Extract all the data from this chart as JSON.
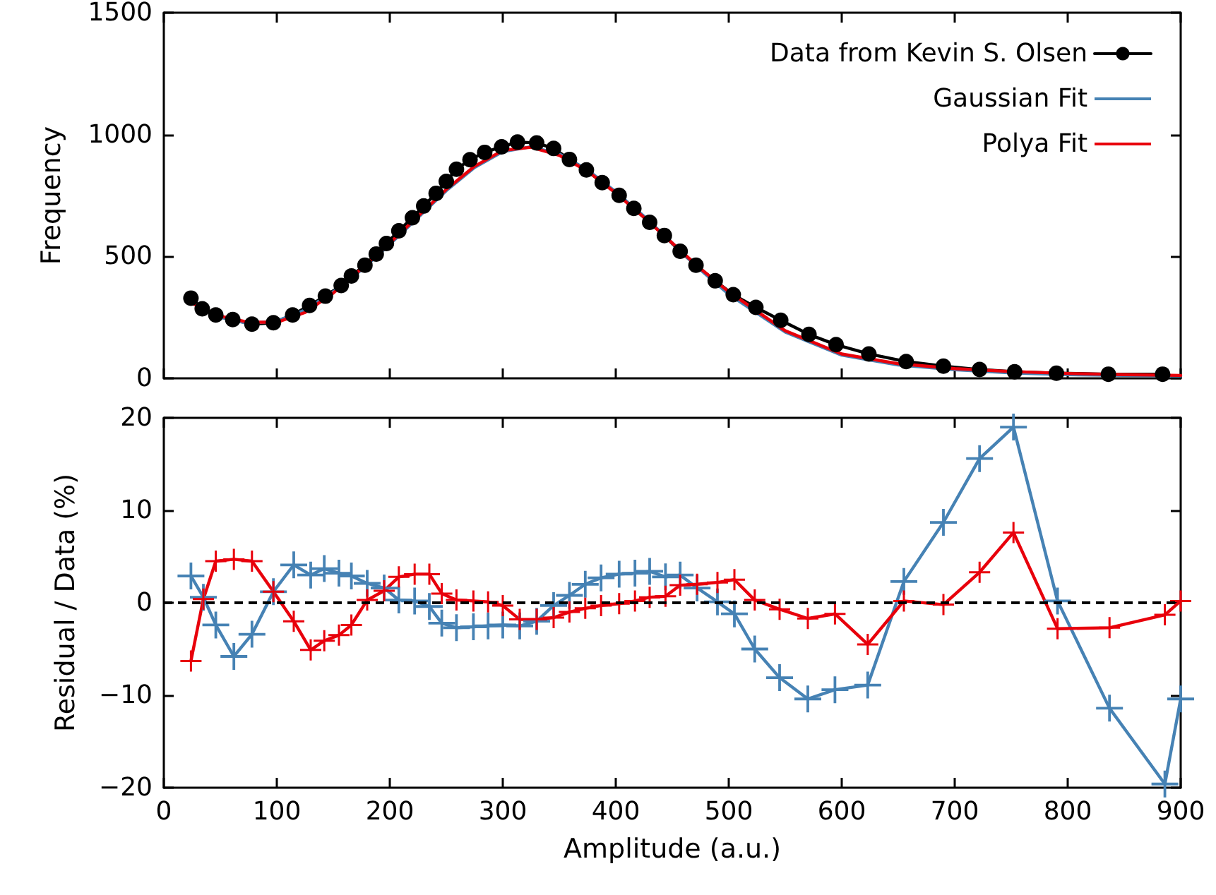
{
  "chart_data": [
    {
      "type": "line",
      "ylabel": "Frequency",
      "xlim": [
        0,
        900
      ],
      "xticks": [
        0,
        100,
        200,
        300,
        400,
        500,
        600,
        700,
        800,
        900
      ],
      "ylim": [
        0,
        1500
      ],
      "yticks": [
        0,
        500,
        1000,
        1500
      ],
      "tick_labels": "y",
      "grid": false,
      "legend": "top right",
      "series": [
        {
          "name": "Data from Kevin S. Olsen",
          "color": "#000000",
          "marker": "circle",
          "line_style": "solid",
          "x": [
            24,
            34,
            46,
            61,
            78,
            97,
            114,
            129,
            143,
            157,
            166,
            178,
            188,
            197,
            208,
            220,
            230,
            241,
            250,
            259,
            271,
            284,
            299,
            313,
            330,
            345,
            359,
            374,
            388,
            403,
            416,
            430,
            443,
            457,
            471,
            488,
            504,
            524,
            546,
            571,
            595,
            624,
            657,
            690,
            722,
            753,
            790,
            836,
            884
          ],
          "values": [
            329,
            285,
            260,
            241,
            222,
            228,
            260,
            299,
            337,
            381,
            420,
            464,
            510,
            553,
            605,
            659,
            707,
            759,
            808,
            858,
            897,
            927,
            950,
            969,
            966,
            943,
            898,
            855,
            803,
            751,
            697,
            640,
            586,
            521,
            464,
            400,
            343,
            291,
            238,
            180,
            138,
            100,
            69,
            50,
            36,
            27,
            21,
            17,
            17
          ]
        },
        {
          "name": "Gaussian Fit",
          "color": "#4682b4",
          "marker": "none",
          "line_style": "solid",
          "x": [
            24,
            50,
            75,
            100,
            125,
            150,
            175,
            200,
            225,
            250,
            275,
            300,
            325,
            350,
            375,
            400,
            425,
            450,
            475,
            500,
            550,
            600,
            650,
            700,
            750,
            800,
            850,
            900
          ],
          "values": [
            315,
            250,
            225,
            235,
            280,
            355,
            445,
            550,
            660,
            770,
            865,
            930,
            950,
            920,
            855,
            765,
            665,
            555,
            445,
            345,
            190,
            95,
            55,
            35,
            22,
            15,
            12,
            10
          ]
        },
        {
          "name": "Polya Fit",
          "color": "#e8000b",
          "marker": "none",
          "line_style": "solid",
          "x": [
            24,
            50,
            75,
            100,
            125,
            150,
            175,
            200,
            225,
            250,
            275,
            300,
            325,
            350,
            375,
            400,
            425,
            450,
            475,
            500,
            550,
            600,
            650,
            700,
            750,
            800,
            850,
            900
          ],
          "values": [
            310,
            255,
            230,
            230,
            270,
            350,
            450,
            555,
            665,
            775,
            870,
            935,
            948,
            915,
            850,
            760,
            660,
            555,
            450,
            355,
            195,
            100,
            60,
            40,
            28,
            20,
            15,
            12
          ]
        }
      ]
    },
    {
      "type": "line",
      "xlabel": "Amplitude (a.u.)",
      "ylabel": "Residual / Data (%)",
      "xlim": [
        0,
        900
      ],
      "xticks": [
        0,
        100,
        200,
        300,
        400,
        500,
        600,
        700,
        800,
        900
      ],
      "ylim": [
        -20,
        20
      ],
      "yticks": [
        -20,
        -10,
        0,
        10,
        20
      ],
      "grid": false,
      "legend": false,
      "ref_lines": [
        {
          "axis": "y",
          "value": 0,
          "color": "#000000",
          "line_style": "dashed"
        }
      ],
      "x": [
        24,
        35,
        46,
        62,
        78,
        97,
        115,
        130,
        142,
        155,
        166,
        180,
        195,
        208,
        222,
        235,
        246,
        259,
        274,
        287,
        300,
        315,
        330,
        345,
        359,
        373,
        387,
        403,
        417,
        430,
        444,
        457,
        472,
        490,
        505,
        523,
        545,
        570,
        594,
        623,
        655,
        690,
        722,
        752,
        791,
        837,
        886,
        900
      ],
      "series": [
        {
          "color": "#4682b4",
          "marker": "cross",
          "line_style": "solid",
          "values": [
            2.9,
            0.6,
            -2.4,
            -5.8,
            -3.4,
            1.2,
            4.1,
            3.0,
            3.7,
            3.2,
            2.9,
            2.1,
            1.6,
            0.3,
            0.2,
            -0.4,
            -2.2,
            -2.7,
            -2.6,
            -2.5,
            -2.4,
            -2.5,
            -2.0,
            -0.3,
            0.8,
            2.0,
            2.7,
            3.1,
            3.2,
            3.4,
            2.8,
            3.0,
            1.6,
            0.1,
            -1.2,
            -5.0,
            -8.1,
            -10.4,
            -9.4,
            -8.9,
            2.3,
            8.7,
            15.6,
            19.0,
            0.2,
            -11.4,
            -19.6,
            -10.4
          ]
        },
        {
          "color": "#e8000b",
          "marker": "cross",
          "line_style": "solid",
          "values": [
            -6.3,
            0.4,
            4.5,
            4.7,
            4.5,
            1.2,
            -2.0,
            -5.1,
            -4.1,
            -3.5,
            -2.4,
            0.3,
            1.3,
            2.8,
            3.1,
            3.1,
            1.0,
            0.3,
            0.2,
            0.1,
            -0.3,
            -1.8,
            -1.8,
            -1.6,
            -1.0,
            -0.6,
            -0.3,
            -0.1,
            0.2,
            0.6,
            0.7,
            1.9,
            2.0,
            2.2,
            2.5,
            0.3,
            -0.7,
            -1.7,
            -1.2,
            -4.5,
            0.2,
            -0.2,
            3.3,
            7.6,
            -2.8,
            -2.7,
            -1.3,
            0.2
          ]
        }
      ]
    }
  ]
}
